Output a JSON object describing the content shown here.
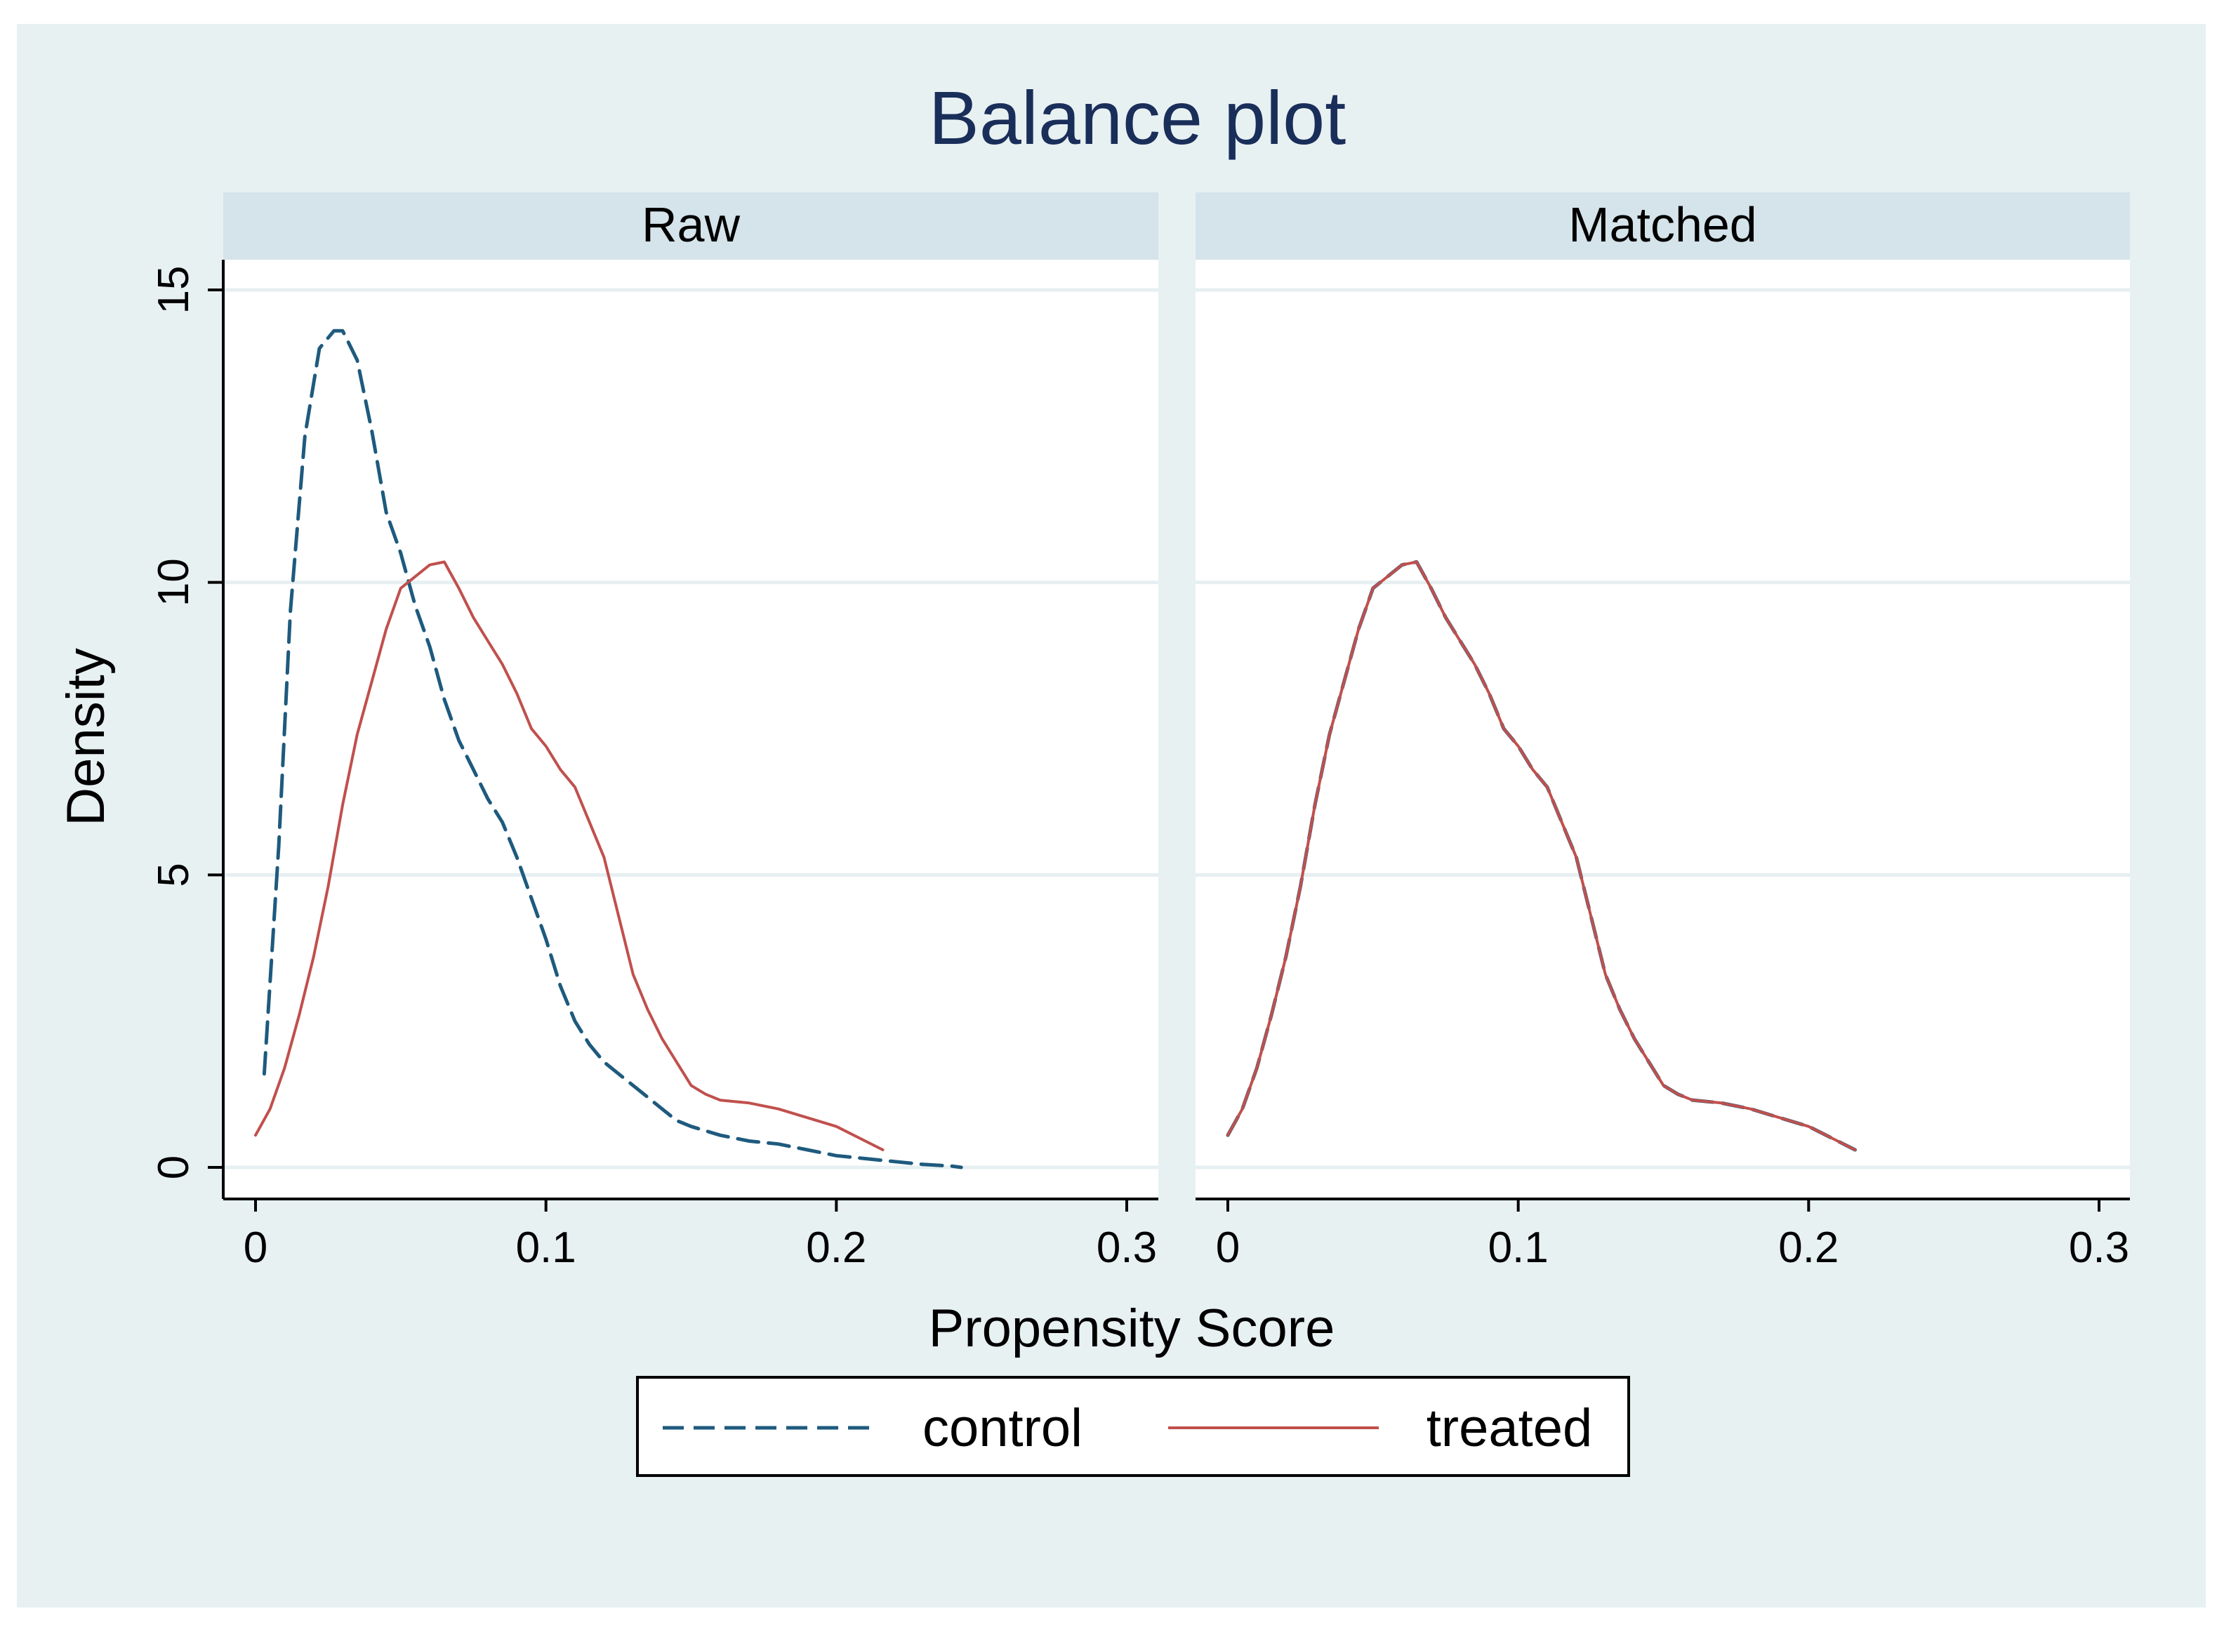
{
  "chart_data": {
    "type": "line",
    "title": "Balance plot",
    "xlabel": "Propensity Score",
    "ylabel": "Density",
    "xlim": [
      0,
      0.3
    ],
    "ylim": [
      0,
      15
    ],
    "x_ticks": [
      {
        "value": 0,
        "label": "0"
      },
      {
        "value": 0.1,
        "label": "0.1"
      },
      {
        "value": 0.2,
        "label": "0.2"
      },
      {
        "value": 0.3,
        "label": "0.3"
      }
    ],
    "y_ticks": [
      {
        "value": 0,
        "label": "0"
      },
      {
        "value": 5,
        "label": "5"
      },
      {
        "value": 10,
        "label": "10"
      },
      {
        "value": 15,
        "label": "15"
      }
    ],
    "grid": true,
    "legend": {
      "position": "bottom-center",
      "entries": [
        {
          "name": "control",
          "style": "dashed"
        },
        {
          "name": "treated",
          "style": "solid"
        }
      ]
    },
    "colors": {
      "outer_background": "#e8f1f2",
      "plot_background": "#ffffff",
      "strip_background": "#d5e3ea",
      "gridline": "#e6eff1",
      "title": "#1a2e5a",
      "control": "#1e5a7e",
      "treated": "#c0504d",
      "axis": "#000000"
    },
    "panels": [
      {
        "name": "Raw",
        "series": [
          {
            "name": "control",
            "x": [
              0.003,
              0.008,
              0.012,
              0.017,
              0.022,
              0.027,
              0.03,
              0.035,
              0.04,
              0.045,
              0.05,
              0.055,
              0.06,
              0.065,
              0.07,
              0.075,
              0.08,
              0.085,
              0.09,
              0.095,
              0.1,
              0.105,
              0.11,
              0.115,
              0.12,
              0.125,
              0.13,
              0.135,
              0.14,
              0.145,
              0.15,
              0.16,
              0.17,
              0.18,
              0.19,
              0.2,
              0.21,
              0.22,
              0.23,
              0.24,
              0.243
            ],
            "y": [
              1.6,
              5.5,
              9.5,
              12.5,
              14.0,
              14.3,
              14.3,
              13.8,
              12.6,
              11.2,
              10.5,
              9.6,
              8.9,
              8.0,
              7.3,
              6.8,
              6.3,
              5.9,
              5.3,
              4.6,
              3.9,
              3.1,
              2.5,
              2.1,
              1.8,
              1.6,
              1.4,
              1.2,
              1.0,
              0.8,
              0.7,
              0.55,
              0.45,
              0.4,
              0.3,
              0.2,
              0.15,
              0.1,
              0.05,
              0.02,
              0.0
            ]
          },
          {
            "name": "treated",
            "x": [
              0.0,
              0.005,
              0.01,
              0.015,
              0.02,
              0.025,
              0.03,
              0.035,
              0.04,
              0.045,
              0.05,
              0.055,
              0.06,
              0.065,
              0.07,
              0.075,
              0.08,
              0.085,
              0.09,
              0.095,
              0.1,
              0.105,
              0.11,
              0.115,
              0.12,
              0.125,
              0.13,
              0.135,
              0.14,
              0.145,
              0.15,
              0.155,
              0.16,
              0.17,
              0.18,
              0.19,
              0.2,
              0.21,
              0.216
            ],
            "y": [
              0.55,
              1.0,
              1.7,
              2.6,
              3.6,
              4.8,
              6.2,
              7.4,
              8.3,
              9.2,
              9.9,
              10.1,
              10.3,
              10.35,
              9.9,
              9.4,
              9.0,
              8.6,
              8.1,
              7.5,
              7.2,
              6.8,
              6.5,
              5.9,
              5.3,
              4.3,
              3.3,
              2.7,
              2.2,
              1.8,
              1.4,
              1.25,
              1.15,
              1.1,
              1.0,
              0.85,
              0.7,
              0.45,
              0.3
            ]
          }
        ]
      },
      {
        "name": "Matched",
        "series": [
          {
            "name": "control",
            "x": [
              0.0,
              0.005,
              0.01,
              0.015,
              0.02,
              0.025,
              0.03,
              0.035,
              0.04,
              0.045,
              0.05,
              0.055,
              0.06,
              0.065,
              0.07,
              0.075,
              0.08,
              0.085,
              0.09,
              0.095,
              0.1,
              0.105,
              0.11,
              0.115,
              0.12,
              0.125,
              0.13,
              0.135,
              0.14,
              0.145,
              0.15,
              0.155,
              0.16,
              0.17,
              0.18,
              0.19,
              0.2,
              0.21,
              0.216
            ],
            "y": [
              0.55,
              1.0,
              1.7,
              2.6,
              3.6,
              4.8,
              6.2,
              7.4,
              8.3,
              9.2,
              9.9,
              10.1,
              10.3,
              10.35,
              9.9,
              9.4,
              9.0,
              8.6,
              8.1,
              7.5,
              7.2,
              6.8,
              6.5,
              5.9,
              5.3,
              4.3,
              3.3,
              2.7,
              2.2,
              1.8,
              1.4,
              1.25,
              1.15,
              1.1,
              1.0,
              0.85,
              0.7,
              0.45,
              0.3
            ]
          },
          {
            "name": "treated",
            "x": [
              0.0,
              0.005,
              0.01,
              0.015,
              0.02,
              0.025,
              0.03,
              0.035,
              0.04,
              0.045,
              0.05,
              0.055,
              0.06,
              0.065,
              0.07,
              0.075,
              0.08,
              0.085,
              0.09,
              0.095,
              0.1,
              0.105,
              0.11,
              0.115,
              0.12,
              0.125,
              0.13,
              0.135,
              0.14,
              0.145,
              0.15,
              0.155,
              0.16,
              0.17,
              0.18,
              0.19,
              0.2,
              0.21,
              0.216
            ],
            "y": [
              0.55,
              1.0,
              1.7,
              2.6,
              3.6,
              4.8,
              6.2,
              7.4,
              8.3,
              9.2,
              9.9,
              10.1,
              10.3,
              10.35,
              9.9,
              9.4,
              9.0,
              8.6,
              8.1,
              7.5,
              7.2,
              6.8,
              6.5,
              5.9,
              5.3,
              4.3,
              3.3,
              2.7,
              2.2,
              1.8,
              1.4,
              1.25,
              1.15,
              1.1,
              1.0,
              0.85,
              0.7,
              0.45,
              0.3
            ]
          }
        ]
      }
    ]
  }
}
